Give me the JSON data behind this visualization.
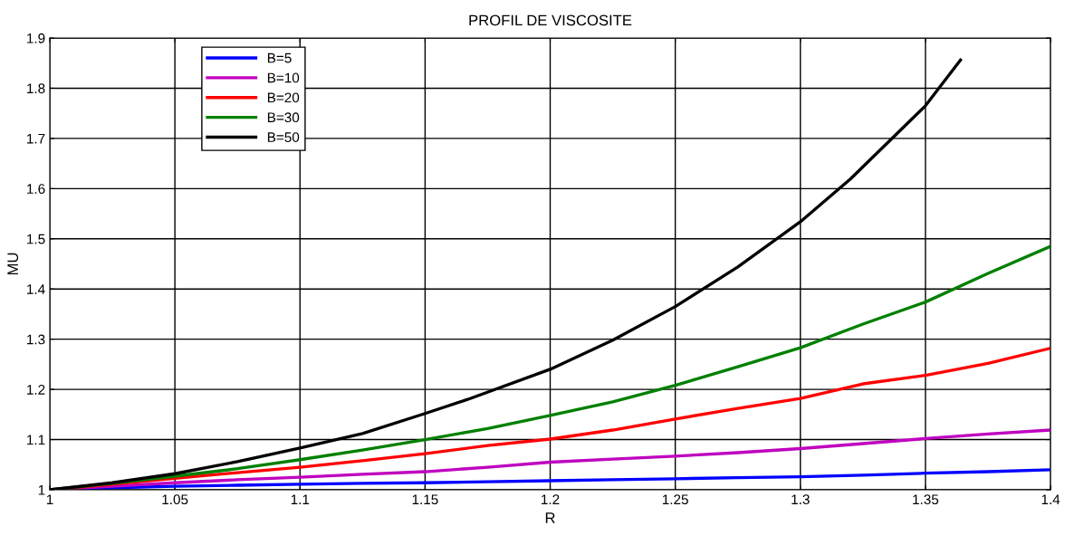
{
  "chart_data": {
    "type": "line",
    "title": "PROFIL DE VISCOSITE",
    "xlabel": "R",
    "ylabel": "MU",
    "x": [
      1,
      1.025,
      1.05,
      1.075,
      1.1,
      1.125,
      1.15,
      1.175,
      1.2,
      1.225,
      1.25,
      1.275,
      1.3,
      1.325,
      1.35,
      1.375,
      1.4
    ],
    "series": [
      {
        "name": "B=5",
        "color": "#0000ff",
        "values": [
          1,
          1.004,
          1.007,
          1.009,
          1.011,
          1.013,
          1.014,
          1.016,
          1.018,
          1.02,
          1.022,
          1.024,
          1.026,
          1.029,
          1.033,
          1.036,
          1.04
        ]
      },
      {
        "name": "B=10",
        "color": "#bf00bf",
        "values": [
          1,
          1.007,
          1.014,
          1.02,
          1.025,
          1.031,
          1.036,
          1.045,
          1.055,
          1.061,
          1.067,
          1.074,
          1.082,
          1.092,
          1.102,
          1.111,
          1.119
        ]
      },
      {
        "name": "B=20",
        "color": "#ff0000",
        "values": [
          1,
          1.011,
          1.023,
          1.034,
          1.045,
          1.058,
          1.072,
          1.088,
          1.101,
          1.119,
          1.141,
          1.162,
          1.182,
          1.211,
          1.228,
          1.252,
          1.282
        ]
      },
      {
        "name": "B=30",
        "color": "#008000",
        "values": [
          1,
          1.013,
          1.027,
          1.042,
          1.06,
          1.079,
          1.1,
          1.122,
          1.148,
          1.175,
          1.208,
          1.245,
          1.283,
          1.33,
          1.374,
          1.431,
          1.485
        ]
      },
      {
        "name": "B=50",
        "color": "#000000",
        "x": [
          1,
          1.025,
          1.05,
          1.075,
          1.1,
          1.125,
          1.15,
          1.167,
          1.2,
          1.225,
          1.25,
          1.275,
          1.3,
          1.32,
          1.35,
          1.364
        ],
        "values": [
          1,
          1.014,
          1.032,
          1.056,
          1.083,
          1.112,
          1.152,
          1.18,
          1.24,
          1.298,
          1.365,
          1.444,
          1.534,
          1.619,
          1.765,
          1.856
        ]
      }
    ],
    "xlim": [
      1,
      1.4
    ],
    "xticks": [
      1,
      1.05,
      1.1,
      1.15,
      1.2,
      1.25,
      1.3,
      1.35,
      1.4
    ],
    "ylim": [
      1,
      1.9
    ],
    "yticks": [
      1,
      1.1,
      1.2,
      1.3,
      1.4,
      1.5,
      1.6,
      1.7,
      1.8,
      1.9
    ],
    "grid": true,
    "legend": "top left",
    "line_style": "solid"
  }
}
